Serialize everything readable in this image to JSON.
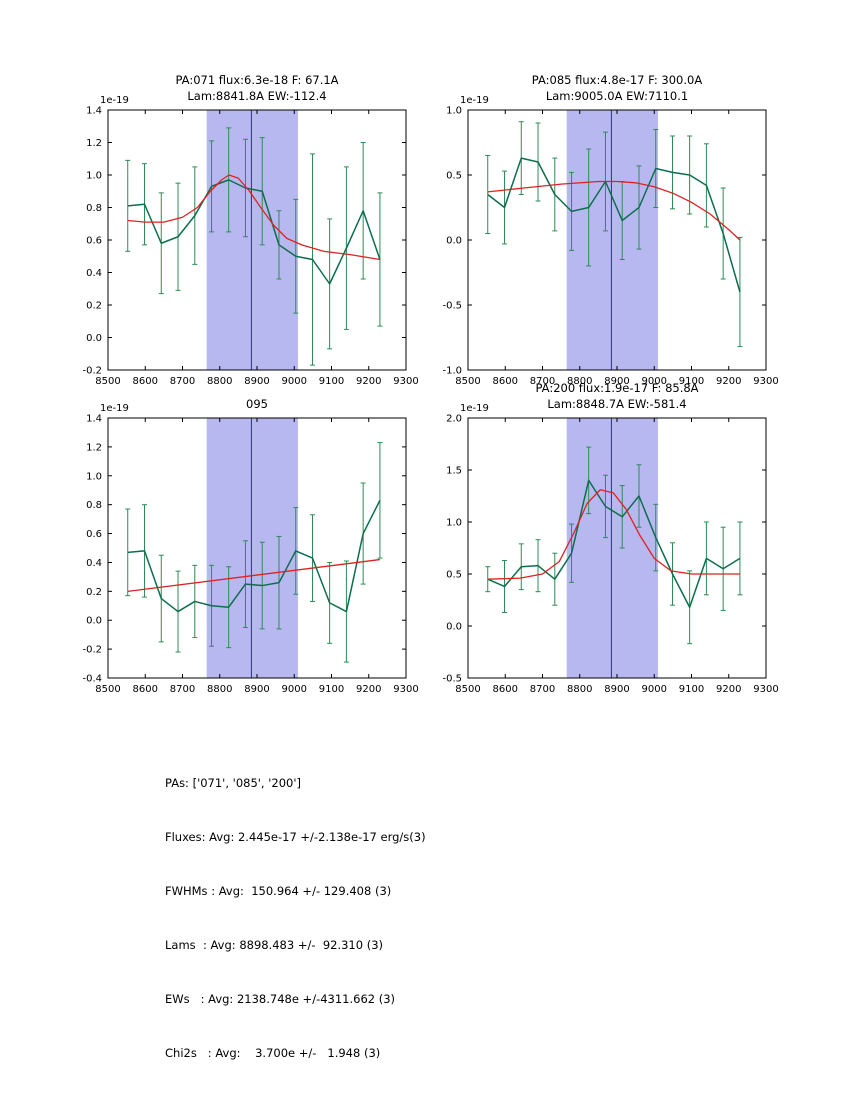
{
  "figure": {
    "bg": "#ffffff",
    "colors": {
      "data_line": "#0d6e4d",
      "err_line": "#2e8b57",
      "fit_line": "#dd2222",
      "band_fill": "#b8b8f0",
      "vline": "#2929b8",
      "axis": "#000000",
      "text": "#000000"
    }
  },
  "summary": {
    "lines": [
      "PAs: ['071', '085', '200']",
      "Fluxes: Avg: 2.445e-17 +/-2.138e-17 erg/s(3)",
      "FWHMs : Avg:  150.964 +/- 129.408 (3)",
      "Lams  : Avg: 8898.483 +/-  92.310 (3)",
      "EWs   : Avg: 2138.748e +/-4311.662 (3)",
      "Chi2s   : Avg:    3.700e +/-   1.948 (3)"
    ]
  },
  "chart_data": [
    {
      "type": "line",
      "title_lines": [
        "PA:071 flux:6.3e-18 F: 67.1A",
        "Lam:8841.8A EW:-112.4"
      ],
      "offset_label": "1e-19",
      "xlim": [
        8500,
        9300
      ],
      "ylim": [
        -0.2,
        1.4
      ],
      "xticks": [
        8500,
        8600,
        8700,
        8800,
        8900,
        9000,
        9100,
        9200,
        9300
      ],
      "yticks": [
        "-0.2",
        "0.0",
        "0.2",
        "0.4",
        "0.6",
        "0.8",
        "1.0",
        "1.2",
        "1.4"
      ],
      "band_x": [
        8765,
        9010
      ],
      "vline_x": 8885,
      "grid": false,
      "legend": "none",
      "series": [
        {
          "name": "spectrum",
          "role": "data",
          "x": [
            8553,
            8598,
            8643,
            8688,
            8733,
            8778,
            8824,
            8869,
            8914,
            8959,
            9004,
            9049,
            9095,
            9140,
            9185,
            9230
          ],
          "y": [
            0.81,
            0.82,
            0.58,
            0.62,
            0.75,
            0.93,
            0.97,
            0.92,
            0.9,
            0.57,
            0.5,
            0.48,
            0.33,
            0.55,
            0.78,
            0.48
          ],
          "yerr": [
            0.28,
            0.25,
            0.31,
            0.33,
            0.3,
            0.28,
            0.32,
            0.3,
            0.33,
            0.21,
            0.35,
            0.65,
            0.4,
            0.5,
            0.42,
            0.41
          ]
        },
        {
          "name": "fit",
          "role": "fit",
          "x": [
            8553,
            8600,
            8650,
            8700,
            8740,
            8775,
            8805,
            8825,
            8850,
            8880,
            8910,
            8945,
            8980,
            9020,
            9080,
            9150,
            9230
          ],
          "y": [
            0.72,
            0.71,
            0.71,
            0.74,
            0.8,
            0.9,
            0.97,
            1.0,
            0.98,
            0.9,
            0.8,
            0.69,
            0.61,
            0.57,
            0.53,
            0.51,
            0.48
          ]
        }
      ]
    },
    {
      "type": "line",
      "title_lines": [
        "PA:085 flux:4.8e-17 F: 300.0A",
        "Lam:9005.0A EW:7110.1"
      ],
      "offset_label": "1e-19",
      "xlim": [
        8500,
        9300
      ],
      "ylim": [
        -1.0,
        1.0
      ],
      "xticks": [
        8500,
        8600,
        8700,
        8800,
        8900,
        9000,
        9100,
        9200,
        9300
      ],
      "yticks": [
        "-1.0",
        "-0.5",
        "0.0",
        "0.5",
        "1.0"
      ],
      "band_x": [
        8765,
        9010
      ],
      "vline_x": 8885,
      "grid": false,
      "legend": "none",
      "series": [
        {
          "name": "spectrum",
          "role": "data",
          "x": [
            8553,
            8598,
            8643,
            8688,
            8733,
            8778,
            8824,
            8869,
            8914,
            8959,
            9004,
            9049,
            9095,
            9140,
            9185,
            9230
          ],
          "y": [
            0.35,
            0.25,
            0.63,
            0.6,
            0.35,
            0.22,
            0.25,
            0.45,
            0.15,
            0.25,
            0.55,
            0.52,
            0.5,
            0.42,
            0.05,
            -0.4
          ],
          "yerr": [
            0.3,
            0.28,
            0.28,
            0.3,
            0.28,
            0.3,
            0.45,
            0.38,
            0.3,
            0.32,
            0.3,
            0.28,
            0.3,
            0.32,
            0.35,
            0.42
          ]
        },
        {
          "name": "fit",
          "role": "fit",
          "x": [
            8553,
            8650,
            8750,
            8850,
            8900,
            8950,
            9000,
            9050,
            9100,
            9150,
            9200,
            9230
          ],
          "y": [
            0.37,
            0.4,
            0.43,
            0.45,
            0.45,
            0.44,
            0.41,
            0.36,
            0.29,
            0.2,
            0.08,
            0.0
          ]
        }
      ]
    },
    {
      "type": "line",
      "title_lines": [
        "095"
      ],
      "offset_label": "1e-19",
      "xlim": [
        8500,
        9300
      ],
      "ylim": [
        -0.4,
        1.4
      ],
      "xticks": [
        8500,
        8600,
        8700,
        8800,
        8900,
        9000,
        9100,
        9200,
        9300
      ],
      "yticks": [
        "-0.4",
        "-0.2",
        "0.0",
        "0.2",
        "0.4",
        "0.6",
        "0.8",
        "1.0",
        "1.2",
        "1.4"
      ],
      "band_x": [
        8765,
        9010
      ],
      "vline_x": 8885,
      "grid": false,
      "legend": "none",
      "series": [
        {
          "name": "spectrum",
          "role": "data",
          "x": [
            8553,
            8598,
            8643,
            8688,
            8733,
            8778,
            8824,
            8869,
            8914,
            8959,
            9004,
            9049,
            9095,
            9140,
            9185,
            9230
          ],
          "y": [
            0.47,
            0.48,
            0.15,
            0.06,
            0.13,
            0.1,
            0.09,
            0.25,
            0.24,
            0.26,
            0.48,
            0.43,
            0.12,
            0.06,
            0.6,
            0.83
          ],
          "yerr": [
            0.3,
            0.32,
            0.3,
            0.28,
            0.25,
            0.28,
            0.28,
            0.3,
            0.3,
            0.32,
            0.3,
            0.3,
            0.28,
            0.35,
            0.35,
            0.4
          ]
        },
        {
          "name": "fit",
          "role": "fit",
          "x": [
            8553,
            9230
          ],
          "y": [
            0.2,
            0.42
          ]
        }
      ]
    },
    {
      "type": "line",
      "title_lines": [
        "PA:200 flux:1.9e-17 F: 85.8A",
        "Lam:8848.7A EW:-581.4"
      ],
      "offset_label": "1e-19",
      "xlim": [
        8500,
        9300
      ],
      "ylim": [
        -0.5,
        2.0
      ],
      "xticks": [
        8500,
        8600,
        8700,
        8800,
        8900,
        9000,
        9100,
        9200,
        9300
      ],
      "yticks": [
        "-0.5",
        "0.0",
        "0.5",
        "1.0",
        "1.5",
        "2.0"
      ],
      "band_x": [
        8765,
        9010
      ],
      "vline_x": 8885,
      "grid": false,
      "legend": "none",
      "series": [
        {
          "name": "spectrum",
          "role": "data",
          "x": [
            8553,
            8598,
            8643,
            8688,
            8733,
            8778,
            8824,
            8869,
            8914,
            8959,
            9004,
            9049,
            9095,
            9140,
            9185,
            9230
          ],
          "y": [
            0.45,
            0.38,
            0.57,
            0.58,
            0.45,
            0.7,
            1.4,
            1.15,
            1.05,
            1.25,
            0.85,
            0.5,
            0.18,
            0.65,
            0.55,
            0.65
          ],
          "yerr": [
            0.12,
            0.25,
            0.22,
            0.25,
            0.25,
            0.28,
            0.32,
            0.3,
            0.3,
            0.3,
            0.32,
            0.3,
            0.35,
            0.35,
            0.4,
            0.35
          ]
        },
        {
          "name": "fit",
          "role": "fit",
          "x": [
            8553,
            8640,
            8700,
            8745,
            8785,
            8820,
            8855,
            8890,
            8925,
            8960,
            9000,
            9045,
            9100,
            9230
          ],
          "y": [
            0.45,
            0.46,
            0.5,
            0.62,
            0.9,
            1.18,
            1.31,
            1.28,
            1.12,
            0.88,
            0.65,
            0.53,
            0.5,
            0.5
          ]
        }
      ]
    }
  ]
}
